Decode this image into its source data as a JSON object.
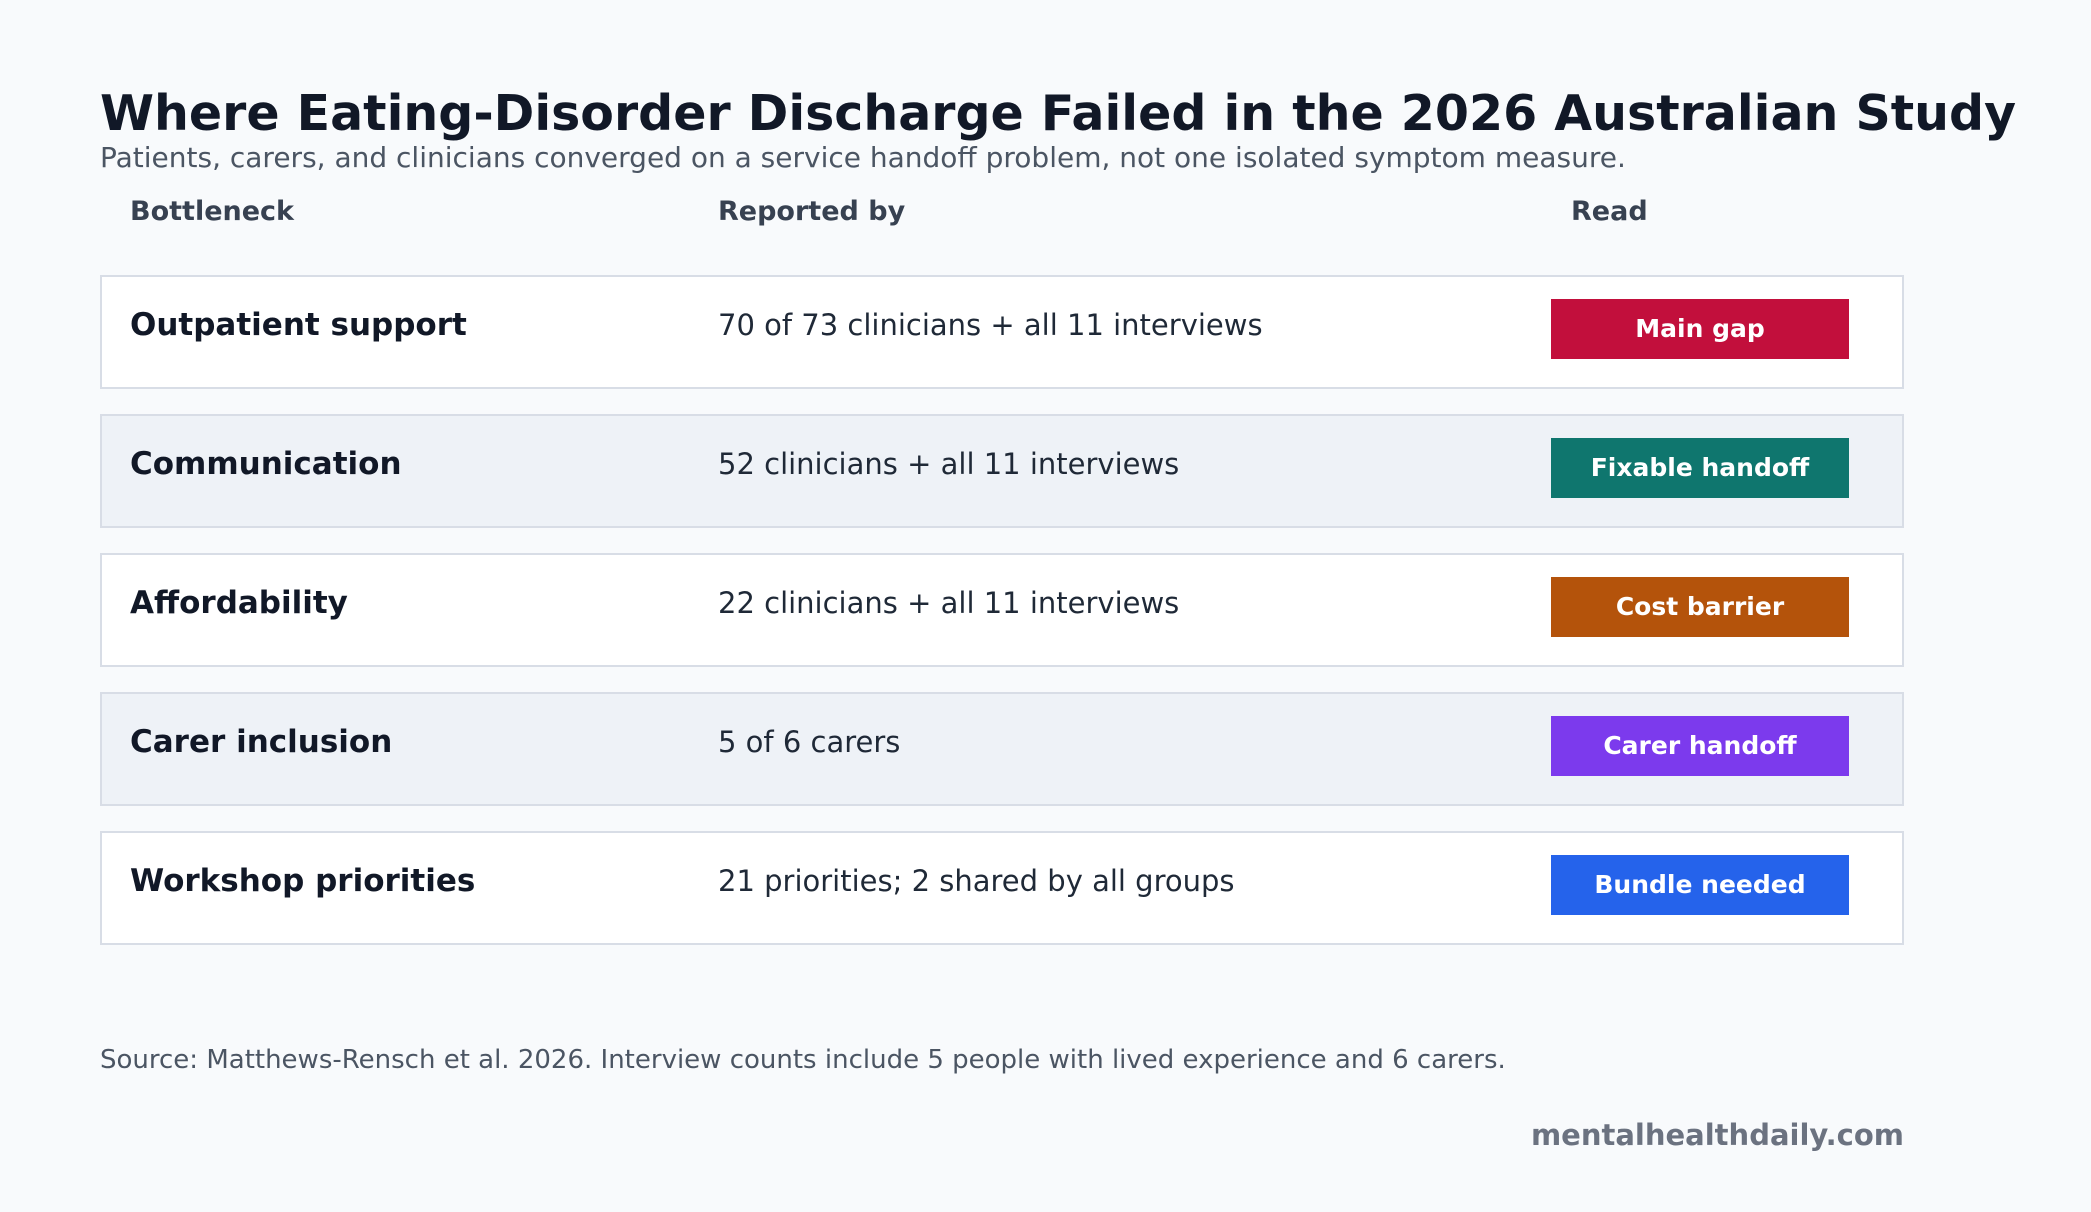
{
  "header": {
    "title": "Where Eating-Disorder Discharge Failed in the 2026 Australian Study",
    "subtitle": "Patients, carers, and clinicians converged on a service handoff problem, not one isolated symptom measure."
  },
  "chart_data": {
    "type": "table",
    "columns": [
      "Bottleneck",
      "Reported by",
      "Read"
    ],
    "rows": [
      {
        "bottleneck": "Outpatient support",
        "reported_by": "70 of 73 clinicians + all 11 interviews",
        "read": "Main gap",
        "badge_color": "#c20f3c"
      },
      {
        "bottleneck": "Communication",
        "reported_by": "52 clinicians + all 11 interviews",
        "read": "Fixable handoff",
        "badge_color": "#0f766e"
      },
      {
        "bottleneck": "Affordability",
        "reported_by": "22 clinicians + all 11 interviews",
        "read": "Cost barrier",
        "badge_color": "#b4530b"
      },
      {
        "bottleneck": "Carer inclusion",
        "reported_by": "5 of 6 carers",
        "read": "Carer handoff",
        "badge_color": "#7c3aed"
      },
      {
        "bottleneck": "Workshop priorities",
        "reported_by": "21 priorities; 2 shared by all groups",
        "read": "Bundle needed",
        "badge_color": "#2563eb"
      }
    ]
  },
  "footer": {
    "source": "Source: Matthews-Rensch et al. 2026. Interview counts include 5 people with lived experience and 6 carers.",
    "brand": "mentalhealthdaily.com"
  }
}
